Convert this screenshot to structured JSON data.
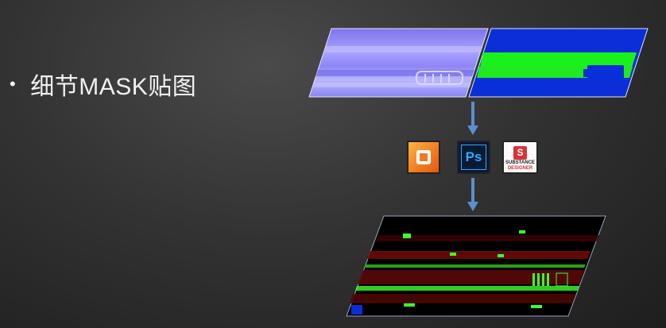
{
  "bullet": {
    "symbol": "•",
    "text": "细节MASK贴图"
  },
  "tools": [
    {
      "name": "Substance Painter",
      "icon": "substance-painter-icon",
      "color": "#f07a1e"
    },
    {
      "name": "Photoshop",
      "icon": "photoshop-icon",
      "label": "Ps",
      "color": "#31a8ff"
    },
    {
      "name": "Substance Designer",
      "icon": "substance-designer-icon",
      "logo_letter": "S",
      "label_line1": "SUBSTANCE",
      "label_line2": "DESIGNER",
      "color": "#d9333a"
    }
  ],
  "colors": {
    "normal_map": "#8a8cf0",
    "id_mask_blue": "#0a2fd8",
    "id_mask_green": "#1af01a",
    "arrow": "#5b8fd0",
    "detail_red": "#7a0c0c",
    "detail_green": "#3cff2a"
  }
}
